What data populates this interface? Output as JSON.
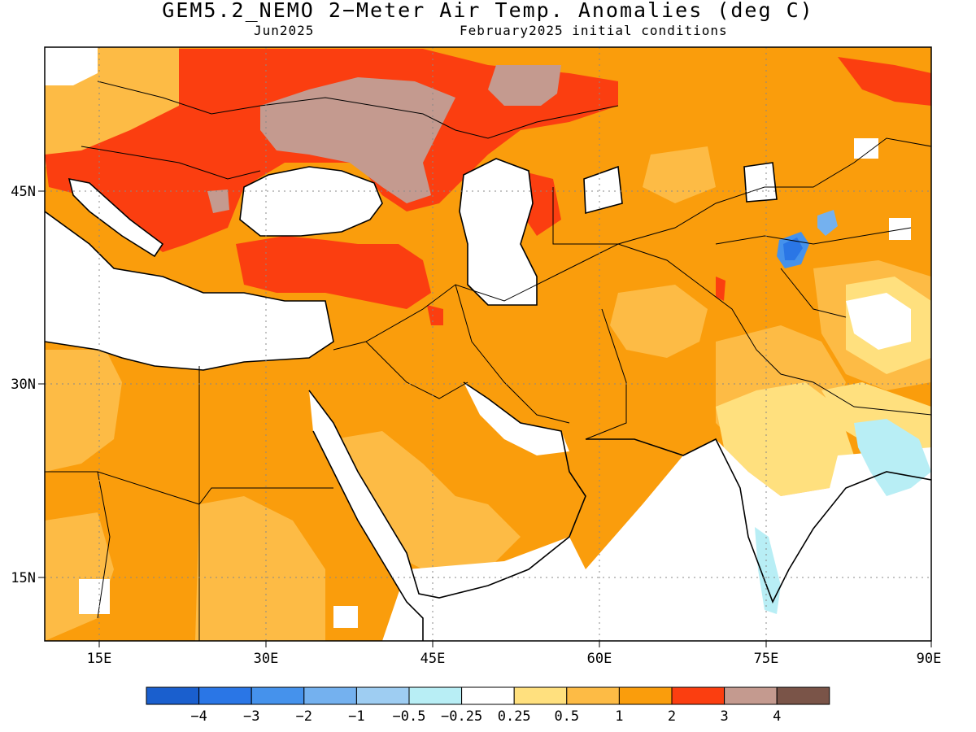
{
  "title": "GEM5.2_NEMO 2−Meter Air Temp. Anomalies (deg C)",
  "valid_label": "Jun2025",
  "init_label": "February2025 initial conditions",
  "lon_ticks": [
    "15E",
    "30E",
    "45E",
    "60E",
    "75E",
    "90E"
  ],
  "lat_ticks": [
    "45N",
    "30N",
    "15N"
  ],
  "colorbar": {
    "colors": [
      "#1a5fce",
      "#2a76e6",
      "#4592ec",
      "#74b1ef",
      "#9ecdf2",
      "#b8eef5",
      "#ffffff",
      "#ffe07e",
      "#fdbb45",
      "#fa9d0c",
      "#fb3e10",
      "#c49a8f",
      "#7a5448"
    ],
    "labels": [
      "−4",
      "−3",
      "−2",
      "−1",
      "−0.5",
      "−0.25",
      "0.25",
      "0.5",
      "1",
      "2",
      "3",
      "4"
    ]
  }
}
